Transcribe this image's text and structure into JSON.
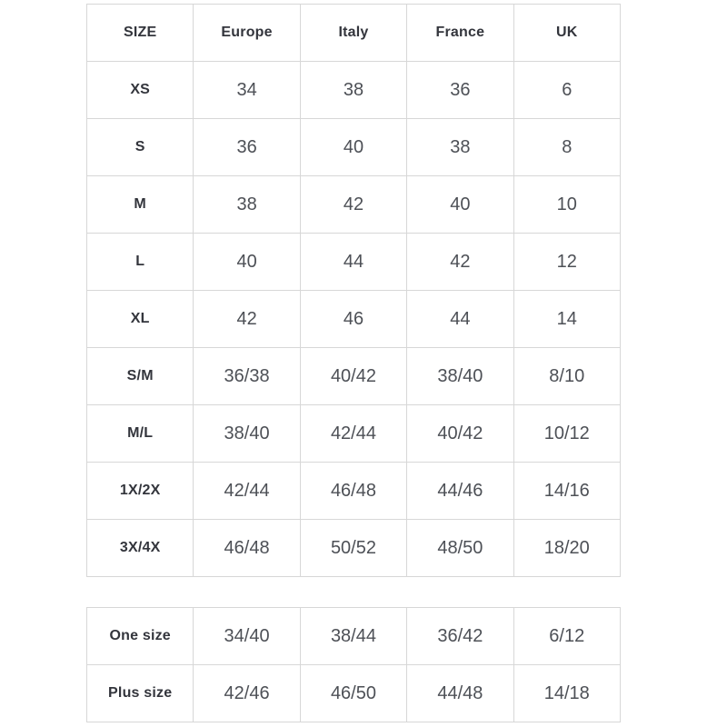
{
  "chart_data": [
    {
      "type": "table",
      "name": "size-conversion-table",
      "columns": [
        "SIZE",
        "Europe",
        "Italy",
        "France",
        "UK"
      ],
      "rows": [
        {
          "label": "XS",
          "values": [
            "34",
            "38",
            "36",
            "6"
          ]
        },
        {
          "label": "S",
          "values": [
            "36",
            "40",
            "38",
            "8"
          ]
        },
        {
          "label": "M",
          "values": [
            "38",
            "42",
            "40",
            "10"
          ]
        },
        {
          "label": "L",
          "values": [
            "40",
            "44",
            "42",
            "12"
          ]
        },
        {
          "label": "XL",
          "values": [
            "42",
            "46",
            "44",
            "14"
          ]
        },
        {
          "label": "S/M",
          "values": [
            "36/38",
            "40/42",
            "38/40",
            "8/10"
          ]
        },
        {
          "label": "M/L",
          "values": [
            "38/40",
            "42/44",
            "40/42",
            "10/12"
          ]
        },
        {
          "label": "1X/2X",
          "values": [
            "42/44",
            "46/48",
            "44/46",
            "14/16"
          ]
        },
        {
          "label": "3X/4X",
          "values": [
            "46/48",
            "50/52",
            "48/50",
            "18/20"
          ]
        }
      ]
    },
    {
      "type": "table",
      "name": "special-sizes-table",
      "columns": [],
      "rows": [
        {
          "label": "One size",
          "values": [
            "34/40",
            "38/44",
            "36/42",
            "6/12"
          ]
        },
        {
          "label": "Plus size",
          "values": [
            "42/46",
            "46/50",
            "44/48",
            "14/18"
          ]
        }
      ]
    }
  ],
  "colors": {
    "border": "#d7d7d7",
    "header_text": "#33353c",
    "value_text": "#4d5056",
    "background": "#ffffff"
  }
}
